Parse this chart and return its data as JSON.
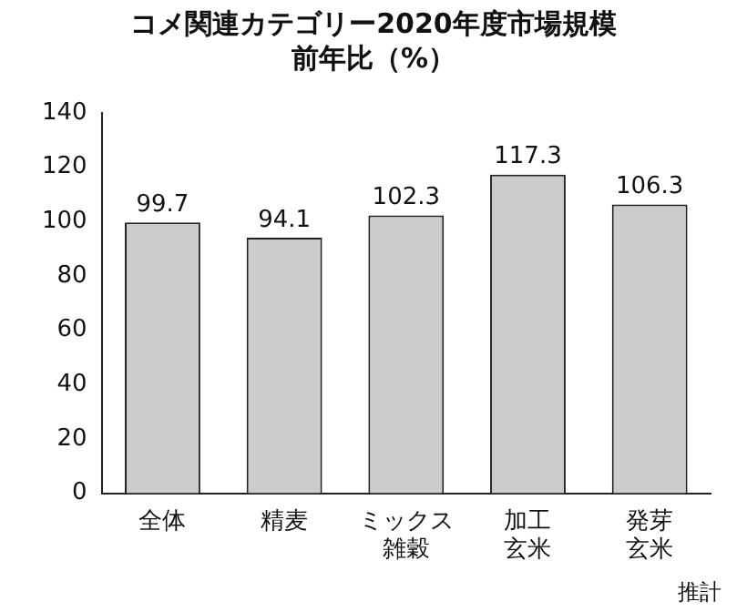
{
  "chart_data": {
    "type": "bar",
    "title": "コメ関連カテゴリー2020年度市場規模",
    "subtitle": "前年比（%）",
    "categories": [
      "全体",
      "精麦",
      "ミックス雑穀",
      "加工玄米",
      "発芽玄米"
    ],
    "values": [
      99.7,
      94.1,
      102.3,
      117.3,
      106.3
    ],
    "color": "#cccccc",
    "ylim": [
      0,
      140
    ],
    "yticks": [
      0,
      20,
      40,
      60,
      80,
      100,
      120,
      140
    ],
    "grid": false,
    "legend": false,
    "data_labels": true,
    "annotations": [
      "推計"
    ]
  }
}
